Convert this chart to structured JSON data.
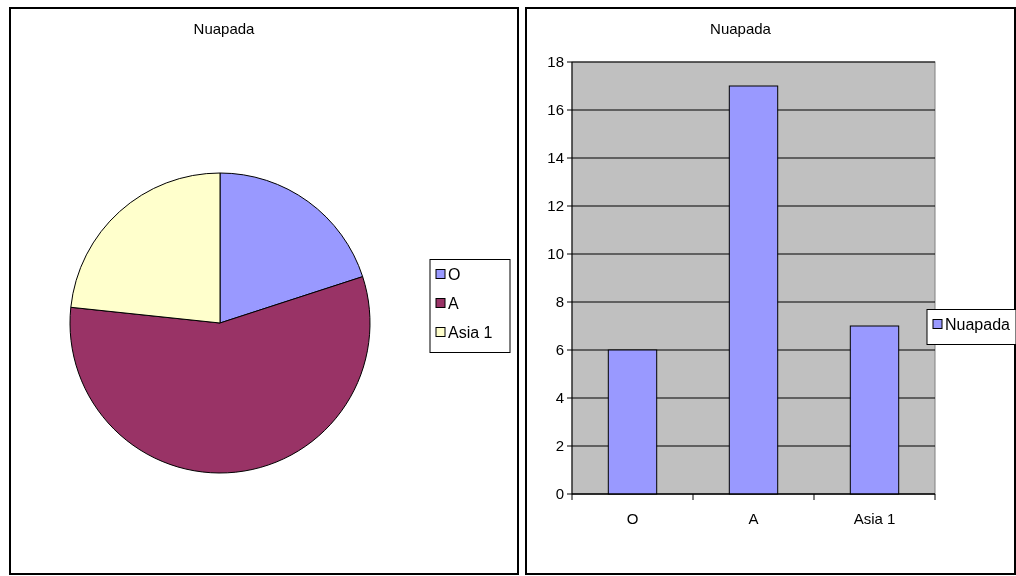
{
  "chart_data": [
    {
      "type": "pie",
      "title": "Nuapada",
      "categories": [
        "O",
        "A",
        "Asia 1"
      ],
      "values": [
        20,
        56.67,
        23.33
      ],
      "colors": [
        "#9999ff",
        "#993366",
        "#ffffcc"
      ],
      "legend": "right"
    },
    {
      "type": "bar",
      "title": "Nuapada",
      "categories": [
        "O",
        "A",
        "Asia 1"
      ],
      "series": [
        {
          "name": "Nuapada",
          "color": "#9999ff",
          "values": [
            6,
            17,
            7
          ]
        }
      ],
      "ylim": [
        0,
        18
      ],
      "yticks": [
        0,
        2,
        4,
        6,
        8,
        10,
        12,
        14,
        16,
        18
      ],
      "grid": "y",
      "legend": "right"
    }
  ]
}
